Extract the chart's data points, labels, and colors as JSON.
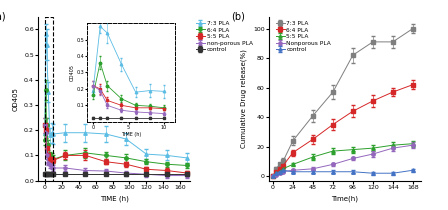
{
  "panel_a": {
    "xlabel": "TIME (h)",
    "ylabel": "OD405",
    "xlim": [
      -8,
      172
    ],
    "ylim": [
      0,
      0.65
    ],
    "yticks": [
      0.0,
      0.1,
      0.2,
      0.3,
      0.4,
      0.5,
      0.6
    ],
    "xticks": [
      0,
      20,
      40,
      60,
      80,
      100,
      120,
      140,
      160
    ],
    "series": [
      {
        "label": "7:3 PLA",
        "color": "#5bbce4",
        "marker": "^",
        "x": [
          0,
          1,
          2,
          4,
          6,
          8,
          10,
          24,
          48,
          72,
          96,
          120,
          144,
          168
        ],
        "y": [
          0.19,
          0.58,
          0.54,
          0.35,
          0.18,
          0.19,
          0.185,
          0.19,
          0.19,
          0.185,
          0.165,
          0.105,
          0.1,
          0.09
        ],
        "yerr": [
          0.03,
          0.04,
          0.06,
          0.04,
          0.03,
          0.04,
          0.04,
          0.035,
          0.035,
          0.03,
          0.025,
          0.02,
          0.02,
          0.02
        ]
      },
      {
        "label": "6:4 PLA",
        "color": "#2ca02c",
        "marker": "o",
        "x": [
          0,
          1,
          2,
          4,
          6,
          8,
          10,
          24,
          48,
          72,
          96,
          120,
          144,
          168
        ],
        "y": [
          0.16,
          0.36,
          0.22,
          0.14,
          0.1,
          0.095,
          0.085,
          0.1,
          0.11,
          0.1,
          0.09,
          0.075,
          0.065,
          0.06
        ],
        "yerr": [
          0.02,
          0.04,
          0.03,
          0.02,
          0.015,
          0.015,
          0.015,
          0.02,
          0.02,
          0.015,
          0.015,
          0.01,
          0.01,
          0.01
        ]
      },
      {
        "label": "5:5 PLA",
        "color": "#d62728",
        "marker": "s",
        "x": [
          0,
          1,
          2,
          4,
          6,
          8,
          10,
          24,
          48,
          72,
          96,
          120,
          144,
          168
        ],
        "y": [
          0.22,
          0.2,
          0.13,
          0.1,
          0.085,
          0.085,
          0.08,
          0.1,
          0.1,
          0.075,
          0.065,
          0.045,
          0.04,
          0.03
        ],
        "yerr": [
          0.03,
          0.03,
          0.02,
          0.015,
          0.01,
          0.01,
          0.01,
          0.015,
          0.02,
          0.01,
          0.01,
          0.01,
          0.01,
          0.01
        ]
      },
      {
        "label": "non-porous PLA",
        "color": "#9467bd",
        "marker": "p",
        "x": [
          0,
          1,
          2,
          4,
          6,
          8,
          10,
          24,
          48,
          72,
          96,
          120,
          144,
          168
        ],
        "y": [
          0.22,
          0.19,
          0.1,
          0.07,
          0.06,
          0.055,
          0.05,
          0.05,
          0.04,
          0.038,
          0.03,
          0.025,
          0.02,
          0.02
        ],
        "yerr": [
          0.03,
          0.03,
          0.015,
          0.01,
          0.01,
          0.01,
          0.01,
          0.01,
          0.01,
          0.01,
          0.01,
          0.01,
          0.01,
          0.01
        ]
      },
      {
        "label": "control",
        "color": "#333333",
        "marker": "s",
        "x": [
          0,
          1,
          2,
          4,
          6,
          8,
          10,
          24,
          48,
          72,
          96,
          120,
          144,
          168
        ],
        "y": [
          0.025,
          0.025,
          0.025,
          0.025,
          0.025,
          0.025,
          0.025,
          0.025,
          0.025,
          0.025,
          0.025,
          0.025,
          0.025,
          0.025
        ],
        "yerr": [
          0.003,
          0.003,
          0.003,
          0.003,
          0.003,
          0.003,
          0.003,
          0.003,
          0.003,
          0.003,
          0.003,
          0.003,
          0.003,
          0.003
        ]
      }
    ],
    "inset": {
      "xlim": [
        -0.8,
        11.5
      ],
      "ylim": [
        0.0,
        0.6
      ],
      "yticks": [
        0.1,
        0.2,
        0.3,
        0.4,
        0.5
      ],
      "xticks": [
        0,
        5,
        10
      ],
      "ylabel": "OD405",
      "xlabel": "TIME (h)"
    }
  },
  "panel_b": {
    "xlabel": "Time(h)",
    "ylabel": "Cumulative Drug release(%)",
    "xlim": [
      -5,
      178
    ],
    "ylim": [
      -3,
      108
    ],
    "yticks": [
      0,
      20,
      40,
      60,
      80,
      100
    ],
    "xticks": [
      0,
      24,
      48,
      72,
      96,
      120,
      144,
      168
    ],
    "series": [
      {
        "label": "7:3 PLA",
        "color": "#7f7f7f",
        "marker": "s",
        "x": [
          0,
          4,
          8,
          12,
          24,
          48,
          72,
          96,
          120,
          144,
          168
        ],
        "y": [
          0,
          5,
          8,
          10,
          24,
          41,
          57,
          82,
          91,
          91,
          100
        ],
        "yerr": [
          0,
          1,
          1,
          2,
          3,
          4,
          5,
          5,
          4,
          4,
          3
        ]
      },
      {
        "label": "6:4 PLA",
        "color": "#d62728",
        "marker": "s",
        "x": [
          0,
          4,
          8,
          12,
          24,
          48,
          72,
          96,
          120,
          144,
          168
        ],
        "y": [
          0,
          3,
          5,
          7,
          16,
          25,
          35,
          44,
          51,
          57,
          62
        ],
        "yerr": [
          0,
          1,
          1,
          1,
          2,
          3,
          4,
          4,
          4,
          3,
          3
        ]
      },
      {
        "label": "5:5 PLA",
        "color": "#2ca02c",
        "marker": "^",
        "x": [
          0,
          4,
          8,
          12,
          24,
          48,
          72,
          96,
          120,
          144,
          168
        ],
        "y": [
          0,
          2,
          3,
          5,
          8,
          13,
          17,
          18,
          19,
          21,
          22
        ],
        "yerr": [
          0,
          0.5,
          0.5,
          1,
          1,
          2,
          2,
          2,
          2,
          2,
          2
        ]
      },
      {
        "label": "Nonporous PLA",
        "color": "#9467bd",
        "marker": "o",
        "x": [
          0,
          4,
          8,
          12,
          24,
          48,
          72,
          96,
          120,
          144,
          168
        ],
        "y": [
          0,
          1,
          2,
          3,
          4,
          5,
          8,
          12,
          15,
          19,
          21
        ],
        "yerr": [
          0,
          0.5,
          0.5,
          0.5,
          1,
          1,
          1,
          1,
          2,
          2,
          2
        ]
      },
      {
        "label": "control",
        "color": "#4472c4",
        "marker": "^",
        "x": [
          0,
          4,
          8,
          12,
          24,
          48,
          72,
          96,
          120,
          144,
          168
        ],
        "y": [
          0,
          2,
          3,
          4,
          3,
          3,
          3,
          3,
          2,
          2,
          4
        ],
        "yerr": [
          0,
          0.5,
          1,
          1,
          1,
          1,
          1,
          1,
          1,
          1,
          1
        ]
      }
    ]
  }
}
